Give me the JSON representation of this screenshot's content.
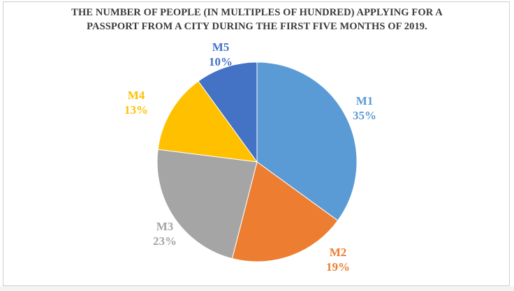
{
  "chart_data": {
    "type": "pie",
    "title_lines": [
      "THE NUMBER OF PEOPLE (IN MULTIPLES OF HUNDRED) APPLYING FOR A",
      "PASSPORT FROM A CITY DURING THE FIRST FIVE MONTHS OF 2019."
    ],
    "slices": [
      {
        "name": "M1",
        "value": 35,
        "label": "35%",
        "color": "#5b9bd5"
      },
      {
        "name": "M2",
        "value": 19,
        "label": "19%",
        "color": "#ed7d31"
      },
      {
        "name": "M3",
        "value": 23,
        "label": "23%",
        "color": "#a5a5a5"
      },
      {
        "name": "M4",
        "value": 13,
        "label": "13%",
        "color": "#ffc000"
      },
      {
        "name": "M5",
        "value": 10,
        "label": "10%",
        "color": "#4472c4"
      }
    ],
    "label_colors": {
      "M1": "#5b9bd5",
      "M2": "#ed7d31",
      "M3": "#a5a5a5",
      "M4": "#ffc000",
      "M5": "#4472c4"
    },
    "start": "top",
    "direction": "clockwise",
    "legend": "none"
  }
}
